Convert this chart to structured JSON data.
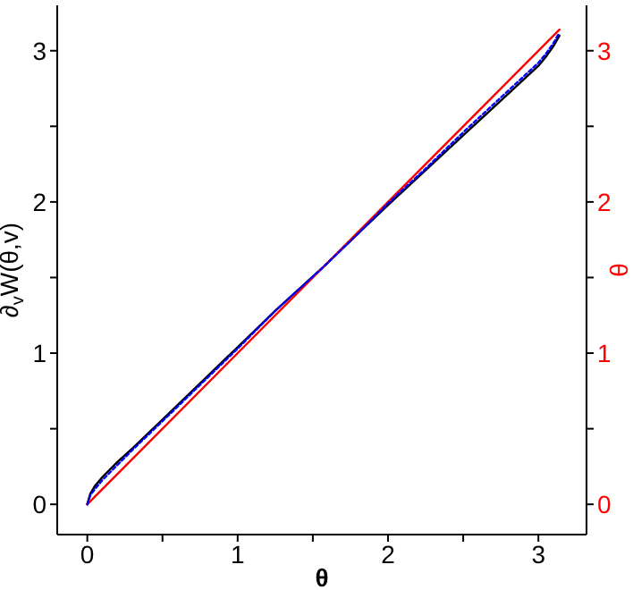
{
  "chart_data": {
    "type": "line",
    "xlabel": "θ",
    "ylabel": "∂$_{v}$W(θ,v)",
    "y2label": "θ",
    "xlim": [
      -0.2,
      3.32
    ],
    "xticks": [
      0,
      {
        "value": 0.5,
        "label": null
      },
      1,
      {
        "value": 1.5,
        "label": null
      },
      2,
      {
        "value": 2.5,
        "label": null
      },
      3
    ],
    "ylim": [
      -0.2,
      3.3
    ],
    "yticks": [
      0,
      {
        "value": 0.5,
        "label": null
      },
      1,
      {
        "value": 1.5,
        "label": null
      },
      2,
      {
        "value": 2.5,
        "label": null
      },
      3
    ],
    "y2lim": [
      -0.2,
      3.3
    ],
    "y2ticks": [
      0,
      {
        "value": 0.5,
        "label": null
      },
      1,
      {
        "value": 1.5,
        "label": null
      },
      2,
      {
        "value": 2.5,
        "label": null
      },
      3
    ],
    "series": [
      {
        "color": "#000000",
        "line_style": "solid",
        "x": [
          0,
          0.02,
          0.05,
          0.1,
          0.2,
          0.3,
          0.5,
          0.75,
          1,
          1.25,
          1.57,
          1.8,
          2,
          2.25,
          2.5,
          2.75,
          3,
          3.05,
          3.1,
          3.14
        ],
        "values": [
          0,
          0.07,
          0.12,
          0.18,
          0.28,
          0.37,
          0.56,
          0.8,
          1.04,
          1.28,
          1.57,
          1.79,
          1.98,
          2.21,
          2.44,
          2.67,
          2.9,
          2.96,
          3.03,
          3.1
        ]
      },
      {
        "color": "#0000ff",
        "line_style": "dotted",
        "x": [
          0,
          0.02,
          0.05,
          0.1,
          0.2,
          0.3,
          0.5,
          0.75,
          1,
          1.25,
          1.57,
          1.8,
          2,
          2.25,
          2.5,
          2.75,
          3,
          3.05,
          3.1,
          3.14
        ],
        "values": [
          0,
          0.06,
          0.1,
          0.16,
          0.26,
          0.36,
          0.55,
          0.79,
          1.03,
          1.28,
          1.57,
          1.79,
          1.99,
          2.22,
          2.46,
          2.69,
          2.92,
          2.98,
          3.05,
          3.12
        ]
      },
      {
        "color": "#ff0000",
        "line_style": "solid",
        "axis": "y2",
        "x": [
          0,
          3.14
        ],
        "values": [
          0,
          3.14
        ]
      }
    ]
  }
}
